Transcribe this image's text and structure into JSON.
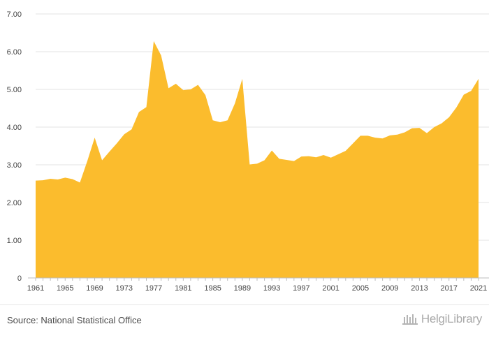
{
  "chart_data": {
    "type": "area",
    "title": "",
    "xlabel": "",
    "ylabel": "",
    "ylim": [
      0,
      7
    ],
    "yticks": [
      "0",
      "1.00",
      "2.00",
      "3.00",
      "4.00",
      "5.00",
      "6.00",
      "7.00"
    ],
    "xtick_labels": [
      "1961",
      "1965",
      "1969",
      "1973",
      "1977",
      "1981",
      "1985",
      "1989",
      "1993",
      "1997",
      "2001",
      "2005",
      "2009",
      "2013",
      "2017",
      "2021"
    ],
    "color": "#FBBC2D",
    "x": [
      1961,
      1962,
      1963,
      1964,
      1965,
      1966,
      1967,
      1968,
      1969,
      1970,
      1971,
      1972,
      1973,
      1974,
      1975,
      1976,
      1977,
      1978,
      1979,
      1980,
      1981,
      1982,
      1983,
      1984,
      1985,
      1986,
      1987,
      1988,
      1989,
      1990,
      1991,
      1992,
      1993,
      1994,
      1995,
      1996,
      1997,
      1998,
      1999,
      2000,
      2001,
      2002,
      2003,
      2004,
      2005,
      2006,
      2007,
      2008,
      2009,
      2010,
      2011,
      2012,
      2013,
      2014,
      2015,
      2016,
      2017,
      2018,
      2019,
      2020,
      2021
    ],
    "values": [
      2.58,
      2.59,
      2.63,
      2.61,
      2.66,
      2.62,
      2.53,
      3.1,
      3.72,
      3.12,
      3.35,
      3.57,
      3.81,
      3.94,
      4.4,
      4.53,
      6.28,
      5.9,
      5.03,
      5.15,
      4.98,
      5.0,
      5.12,
      4.85,
      4.18,
      4.13,
      4.18,
      4.63,
      5.28,
      3.01,
      3.03,
      3.12,
      3.38,
      3.16,
      3.13,
      3.1,
      3.22,
      3.23,
      3.2,
      3.26,
      3.19,
      3.28,
      3.37,
      3.57,
      3.77,
      3.77,
      3.72,
      3.7,
      3.78,
      3.8,
      3.86,
      3.97,
      3.98,
      3.84,
      4.0,
      4.1,
      4.26,
      4.52,
      4.86,
      4.96,
      5.28
    ]
  },
  "footer": {
    "source": "Source: National Statistical Office",
    "brand": "HelgiLibrary"
  }
}
